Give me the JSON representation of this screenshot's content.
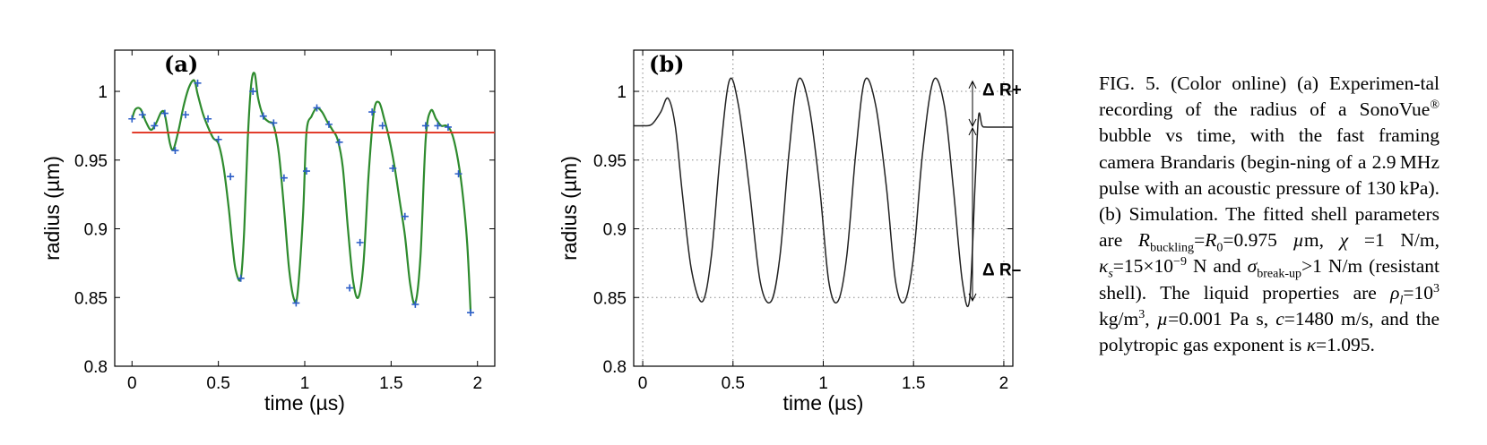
{
  "chart_data": [
    {
      "type": "line",
      "panel_label": "(a)",
      "xlabel": "time (µs)",
      "ylabel": "radius (µm)",
      "xlim": [
        -0.1,
        2.1
      ],
      "ylim": [
        0.8,
        1.03
      ],
      "xticks": [
        0,
        0.5,
        1,
        1.5,
        2
      ],
      "xtick_labels": [
        "0",
        "0.5",
        "1",
        "1.5",
        "2"
      ],
      "yticks": [
        0.8,
        0.85,
        0.9,
        0.95,
        1
      ],
      "ytick_labels": [
        "0.8",
        "0.85",
        "0.9",
        "0.95",
        "1"
      ],
      "grid": false,
      "series": [
        {
          "kind": "fit-curve",
          "color": "#2e8b2e",
          "x": [
            0,
            0.02,
            0.05,
            0.08,
            0.11,
            0.14,
            0.17,
            0.19,
            0.22,
            0.24,
            0.27,
            0.3,
            0.33,
            0.36,
            0.38,
            0.41,
            0.44,
            0.47,
            0.5,
            0.53,
            0.56,
            0.58,
            0.6,
            0.63,
            0.65,
            0.67,
            0.69,
            0.71,
            0.73,
            0.76,
            0.79,
            0.82,
            0.85,
            0.88,
            0.91,
            0.94,
            0.96,
            0.99,
            1.01,
            1.04,
            1.07,
            1.1,
            1.13,
            1.16,
            1.19,
            1.22,
            1.25,
            1.28,
            1.31,
            1.34,
            1.37,
            1.4,
            1.43,
            1.46,
            1.49,
            1.52,
            1.55,
            1.58,
            1.61,
            1.64,
            1.67,
            1.7,
            1.73,
            1.76,
            1.79,
            1.82,
            1.85,
            1.88,
            1.91,
            1.94,
            1.96
          ],
          "y": [
            0.98,
            0.987,
            0.987,
            0.978,
            0.972,
            0.977,
            0.985,
            0.983,
            0.962,
            0.958,
            0.972,
            0.99,
            1.003,
            1.008,
            0.998,
            0.984,
            0.974,
            0.966,
            0.962,
            0.945,
            0.915,
            0.89,
            0.87,
            0.864,
            0.9,
            0.965,
            1.005,
            1.013,
            0.995,
            0.982,
            0.978,
            0.975,
            0.955,
            0.915,
            0.87,
            0.848,
            0.855,
            0.91,
            0.97,
            0.982,
            0.988,
            0.985,
            0.978,
            0.972,
            0.965,
            0.945,
            0.9,
            0.862,
            0.85,
            0.875,
            0.94,
            0.985,
            0.992,
            0.98,
            0.965,
            0.945,
            0.92,
            0.895,
            0.86,
            0.846,
            0.88,
            0.965,
            0.986,
            0.98,
            0.975,
            0.975,
            0.97,
            0.955,
            0.93,
            0.89,
            0.84
          ]
        },
        {
          "kind": "data-markers",
          "color": "#2b5dc7",
          "x": [
            0,
            0.06,
            0.13,
            0.19,
            0.25,
            0.31,
            0.38,
            0.44,
            0.5,
            0.57,
            0.63,
            0.7,
            0.76,
            0.82,
            0.88,
            0.95,
            1.01,
            1.07,
            1.14,
            1.2,
            1.26,
            1.32,
            1.39,
            1.45,
            1.51,
            1.58,
            1.64,
            1.7,
            1.77,
            1.83,
            1.89,
            1.96
          ],
          "y": [
            0.98,
            0.983,
            0.975,
            0.984,
            0.957,
            0.983,
            1.006,
            0.98,
            0.965,
            0.938,
            0.864,
            1.0,
            0.982,
            0.977,
            0.937,
            0.846,
            0.942,
            0.988,
            0.976,
            0.963,
            0.857,
            0.89,
            0.985,
            0.975,
            0.944,
            0.909,
            0.845,
            0.975,
            0.975,
            0.974,
            0.94,
            0.839
          ]
        },
        {
          "kind": "reference-line",
          "color": "#e0301e",
          "x": [
            0,
            2.1
          ],
          "y": [
            0.97,
            0.97
          ]
        }
      ]
    },
    {
      "type": "line",
      "panel_label": "(b)",
      "xlabel": "time (µs)",
      "ylabel": "radius (µm)",
      "xlim": [
        -0.05,
        2.05
      ],
      "ylim": [
        0.8,
        1.03
      ],
      "xticks": [
        0,
        0.5,
        1,
        1.5,
        2
      ],
      "xtick_labels": [
        "0",
        "0.5",
        "1",
        "1.5",
        "2"
      ],
      "yticks": [
        0.8,
        0.85,
        0.9,
        0.95,
        1
      ],
      "ytick_labels": [
        "0.8",
        "0.85",
        "0.9",
        "0.95",
        "1"
      ],
      "grid": true,
      "series": [
        {
          "kind": "simulation",
          "color": "#222222",
          "x": [
            -0.05,
            0.0,
            0.05,
            0.1,
            0.14,
            0.18,
            0.22,
            0.27,
            0.33,
            0.38,
            0.43,
            0.48,
            0.53,
            0.59,
            0.65,
            0.71,
            0.76,
            0.81,
            0.86,
            0.92,
            0.98,
            1.03,
            1.08,
            1.13,
            1.18,
            1.23,
            1.29,
            1.35,
            1.4,
            1.45,
            1.5,
            1.55,
            1.61,
            1.67,
            1.72,
            1.77,
            1.81,
            1.84,
            1.86,
            1.88,
            1.91,
            2.05
          ],
          "y": [
            0.975,
            0.975,
            0.976,
            0.985,
            0.995,
            0.975,
            0.925,
            0.87,
            0.847,
            0.88,
            0.955,
            1.008,
            0.99,
            0.93,
            0.862,
            0.847,
            0.88,
            0.955,
            1.008,
            0.99,
            0.93,
            0.862,
            0.847,
            0.88,
            0.955,
            1.008,
            0.99,
            0.93,
            0.862,
            0.847,
            0.88,
            0.955,
            1.008,
            0.99,
            0.93,
            0.862,
            0.848,
            0.93,
            0.982,
            0.975,
            0.974,
            0.974
          ]
        }
      ],
      "annotations": [
        {
          "text": "Δ R+",
          "from_y": 1.008,
          "to_y": 0.974
        },
        {
          "text": "Δ R–",
          "from_y": 0.974,
          "to_y": 0.847
        }
      ]
    }
  ],
  "caption_html": "FIG. 5. (Color online) (a) Experimen-tal recording of the radius of a SonoVue<sup>®</sup> bubble vs time, with the fast framing camera Brandaris (begin-ning of a 2.9 MHz pulse with an acoustic pressure of 130 kPa). (b) Simulation. The fitted shell parameters are <i>R</i><sub>buckling</sub>=<i>R</i><sub>0</sub>=0.975 <i>µ</i>m, <i>χ</i> =1 N/m, <i>κ<sub>s</sub></i>=15×10<sup>−9</sup> N and <i>σ</i><sub>break-up</sub>&gt;1 N/m (resistant shell). The liquid properties are <i>ρ<sub>l</sub></i>=10<sup>3</sup> kg/m<sup>3</sup>, <i>µ</i>=0.001 Pa s, <i>c</i>=1480 m/s, and the polytropic gas exponent is <i>κ</i>=1.095."
}
